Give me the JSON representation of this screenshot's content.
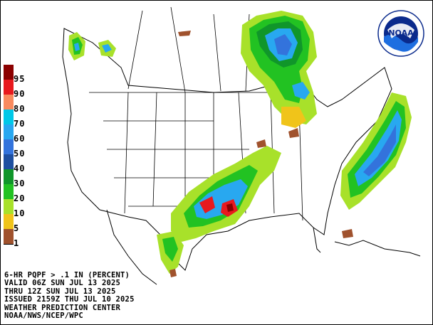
{
  "legend": {
    "colors": [
      "#8b0000",
      "#e8191e",
      "#f98a5e",
      "#00c8e8",
      "#28a8f0",
      "#3373dc",
      "#1e4fa0",
      "#10962a",
      "#22c222",
      "#a8e12a",
      "#f0c41a",
      "#a0522d",
      "#ffffff"
    ],
    "labels": [
      "95",
      "90",
      "80",
      "70",
      "60",
      "50",
      "40",
      "30",
      "20",
      "10",
      "5",
      "1"
    ]
  },
  "caption": {
    "line1": "6-HR PQPF > .1 IN (PERCENT)",
    "line2": "VALID 06Z SUN JUL 13 2025",
    "line3": "THRU 12Z SUN JUL 13 2025",
    "line4": "ISSUED 2159Z THU JUL 10 2025",
    "line5": "WEATHER PREDICTION CENTER",
    "line6": "NOAA/NWS/NCEP/WPC"
  },
  "logo": {
    "text": "NOAA",
    "ring_color": "#0a2a8c",
    "water_color": "#1e6ee0"
  }
}
